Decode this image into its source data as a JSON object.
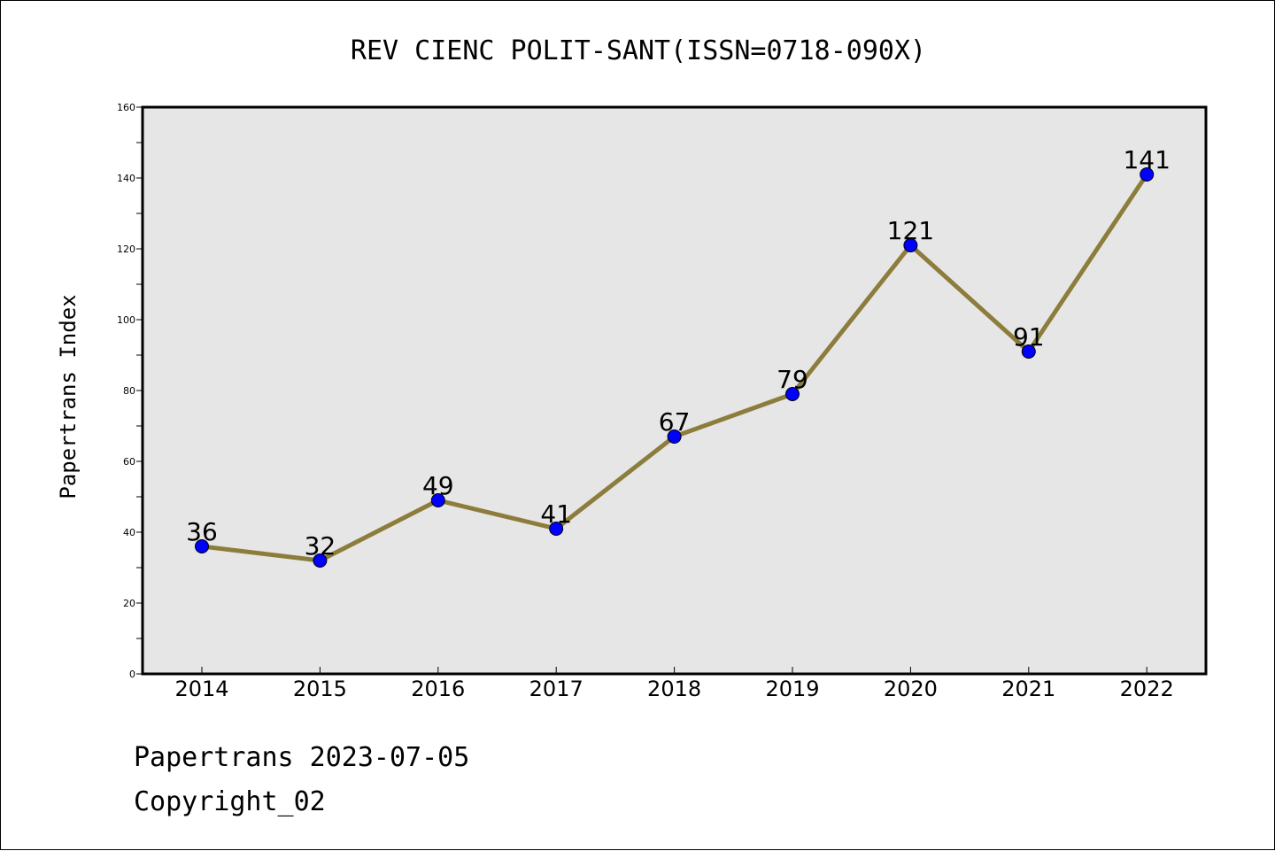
{
  "chart_data": {
    "type": "line",
    "title": "REV CIENC POLIT-SANT(ISSN=0718-090X)",
    "xlabel": "",
    "ylabel": "Papertrans Index",
    "categories": [
      "2014",
      "2015",
      "2016",
      "2017",
      "2018",
      "2019",
      "2020",
      "2021",
      "2022"
    ],
    "series": [
      {
        "values": [
          36,
          32,
          49,
          41,
          67,
          79,
          121,
          91,
          141
        ],
        "data_labels": [
          "36",
          "32",
          "49",
          "41",
          "67",
          "79",
          "121",
          "91",
          "141"
        ]
      }
    ],
    "ylim": [
      0,
      160
    ],
    "y_ticks": [
      0,
      20,
      40,
      60,
      80,
      100,
      120,
      140,
      160
    ],
    "y_tick_labels": [
      "0",
      "20",
      "40",
      "60",
      "80",
      "100",
      "120",
      "140",
      "160"
    ],
    "grid": false,
    "legend": "none"
  },
  "footer": {
    "line1": "Papertrans 2023-07-05",
    "line2": "Copyright_02"
  },
  "colors": {
    "line": "#8c7d3c",
    "marker_fill": "#0000ff",
    "plot_bg": "#e6e6e6"
  }
}
